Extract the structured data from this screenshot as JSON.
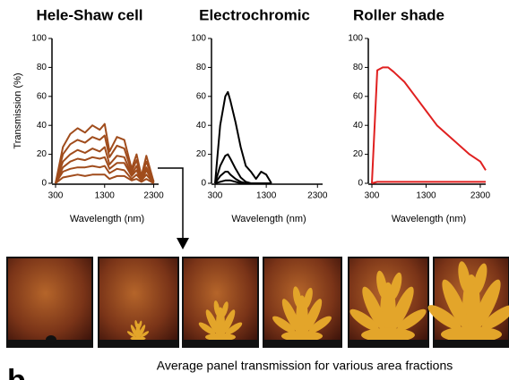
{
  "chart_data": [
    {
      "type": "line",
      "title": "Hele-Shaw cell",
      "ylabel": "Transmission (%)",
      "xlabel": "Wavelength (nm)",
      "x": [
        300,
        450,
        600,
        750,
        900,
        1050,
        1200,
        1300,
        1400,
        1550,
        1700,
        1850,
        1950,
        2050,
        2150,
        2300
      ],
      "series": [
        {
          "color": "#a04c1c",
          "values": [
            0,
            25,
            34,
            38,
            35,
            40,
            37,
            41,
            22,
            32,
            30,
            10,
            20,
            5,
            19,
            1
          ]
        },
        {
          "color": "#a04c1c",
          "values": [
            0,
            20,
            27,
            30,
            28,
            32,
            30,
            33,
            18,
            26,
            24,
            8,
            16,
            4,
            15,
            1
          ]
        },
        {
          "color": "#a04c1c",
          "values": [
            0,
            15,
            20,
            23,
            21,
            24,
            22,
            25,
            13,
            19,
            18,
            6,
            12,
            3,
            11,
            1
          ]
        },
        {
          "color": "#a04c1c",
          "values": [
            0,
            11,
            15,
            17,
            16,
            18,
            17,
            18,
            10,
            14,
            14,
            5,
            9,
            2,
            9,
            0
          ]
        },
        {
          "color": "#a04c1c",
          "values": [
            0,
            8,
            10,
            11,
            11,
            12,
            11,
            12,
            7,
            10,
            9,
            3,
            6,
            2,
            6,
            0
          ]
        },
        {
          "color": "#a04c1c",
          "values": [
            0,
            4,
            5,
            6,
            5,
            6,
            6,
            6,
            3,
            5,
            5,
            2,
            3,
            1,
            3,
            0
          ]
        }
      ],
      "xlim": [
        300,
        2400
      ],
      "ylim": [
        0,
        100
      ],
      "xticks": [
        300,
        1300,
        2300
      ],
      "yticks": [
        0,
        20,
        40,
        60,
        80,
        100
      ]
    },
    {
      "type": "line",
      "title": "Electrochromic",
      "xlabel": "Wavelength (nm)",
      "x": [
        300,
        400,
        500,
        550,
        600,
        700,
        800,
        900,
        1000,
        1100,
        1200,
        1300,
        1400
      ],
      "series": [
        {
          "color": "#000000",
          "values": [
            0,
            40,
            60,
            63,
            57,
            42,
            25,
            12,
            8,
            3,
            8,
            6,
            0
          ]
        },
        {
          "color": "#000000",
          "values": [
            0,
            12,
            19,
            20,
            17,
            10,
            4,
            1,
            0,
            0,
            0,
            0,
            0
          ]
        },
        {
          "color": "#000000",
          "values": [
            0,
            5,
            8,
            8,
            6,
            3,
            1,
            0,
            0,
            0,
            0,
            0,
            0
          ]
        },
        {
          "color": "#000000",
          "values": [
            0,
            1,
            2,
            2,
            2,
            1,
            0,
            0,
            0,
            0,
            0,
            0,
            0
          ]
        }
      ],
      "xlim": [
        300,
        2400
      ],
      "ylim": [
        0,
        100
      ],
      "xticks": [
        300,
        1300,
        2300
      ],
      "yticks": [
        0,
        20,
        40,
        60,
        80,
        100
      ]
    },
    {
      "type": "line",
      "title": "Roller shade",
      "xlabel": "Wavelength (nm)",
      "x": [
        300,
        400,
        500,
        600,
        700,
        900,
        1100,
        1300,
        1500,
        1800,
        2100,
        2300,
        2400
      ],
      "series": [
        {
          "color": "#e02020",
          "values": [
            0,
            78,
            80,
            80,
            77,
            70,
            60,
            50,
            40,
            30,
            20,
            15,
            9
          ]
        },
        {
          "color": "#e02020",
          "values": [
            0,
            1,
            1,
            1,
            1,
            1,
            1,
            1,
            1,
            1,
            1,
            1,
            1
          ]
        }
      ],
      "xlim": [
        300,
        2400
      ],
      "ylim": [
        0,
        100
      ],
      "xticks": [
        300,
        1300,
        2300
      ],
      "yticks": [
        0,
        20,
        40,
        60,
        80,
        100
      ]
    }
  ],
  "caption": "Average panel transmission for various area fractions",
  "panel_label": "b"
}
